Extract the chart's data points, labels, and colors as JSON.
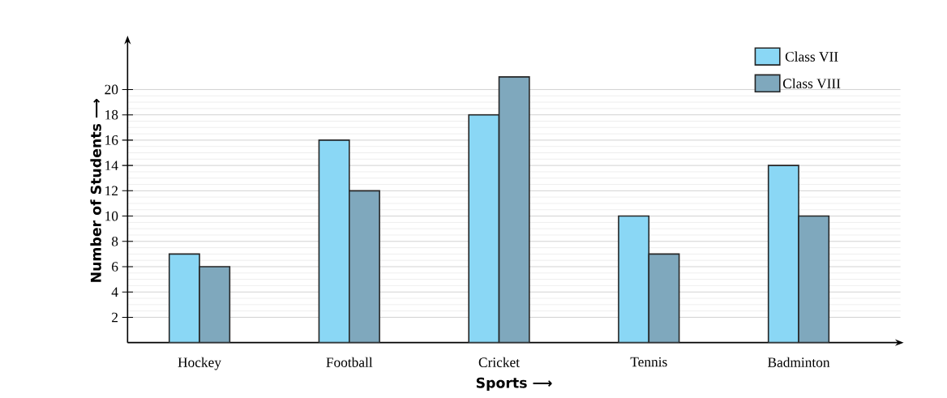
{
  "chart_data": {
    "type": "bar",
    "xlabel": "Sports ⟶",
    "ylabel": "Number of Students ⟶",
    "categories": [
      "Hockey",
      "Football",
      "Cricket",
      "Tennis",
      "Badminton"
    ],
    "series": [
      {
        "name": "Class VII",
        "color": "#8ad7f5",
        "values": [
          7,
          16,
          18,
          10,
          14
        ]
      },
      {
        "name": "Class VIII",
        "color": "#7fa8bd",
        "values": [
          6,
          12,
          21,
          7,
          10
        ]
      }
    ],
    "ylim": [
      0,
      24
    ],
    "yticks": [
      2,
      4,
      6,
      8,
      10,
      12,
      14,
      16,
      18,
      20
    ],
    "grid": "y",
    "legend": "top right"
  }
}
